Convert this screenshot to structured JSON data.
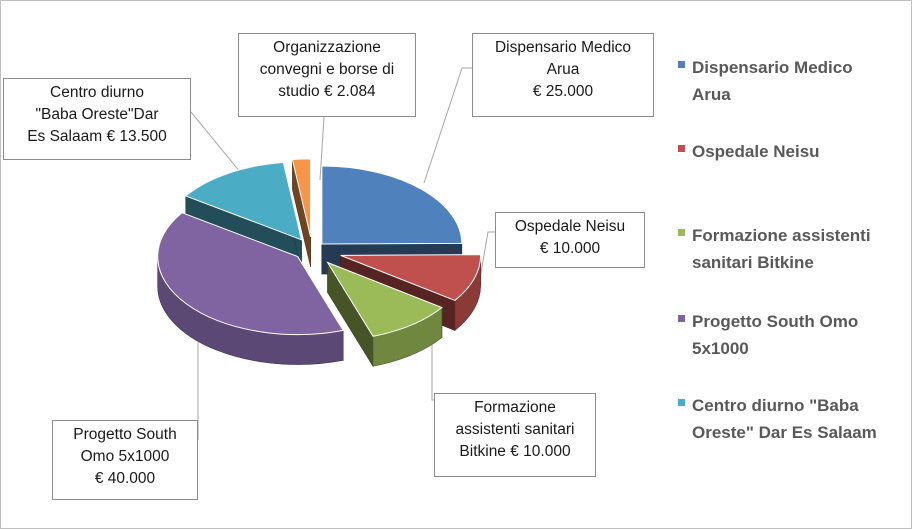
{
  "chart_data": {
    "type": "pie",
    "currency": "€",
    "slices": [
      {
        "label": "Dispensario Medico Arua",
        "value": 25000,
        "value_label": "€ 25.000",
        "color": "#4f81bd",
        "legend_label": "Dispensario Medico Arua"
      },
      {
        "label": "Ospedale Neisu",
        "value": 10000,
        "value_label": "€ 10.000",
        "color": "#c0504d",
        "legend_label": "Ospedale Neisu"
      },
      {
        "label": "Formazione assistenti sanitari Bitkine",
        "value": 10000,
        "value_label": "€ 10.000",
        "color": "#9bbb59",
        "legend_label": "Formazione assistenti sanitari Bitkine"
      },
      {
        "label": "Progetto South Omo 5x1000",
        "value": 40000,
        "value_label": "€ 40.000",
        "color": "#8064a2",
        "legend_label": "Progetto South Omo 5x1000"
      },
      {
        "label": "Centro diurno \"Baba Oreste\"Dar Es Salaam",
        "value": 13500,
        "value_label": "€ 13.500",
        "color": "#4bacc6",
        "legend_label": "Centro diurno \"Baba Oreste\" Dar Es Salaam"
      },
      {
        "label": "Organizzazione convegni e borse di studio",
        "value": 2084,
        "value_label": "€ 2.084",
        "color": "#f79646",
        "legend_label": ""
      }
    ],
    "callouts": [
      {
        "lines": [
          "Dispensario Medico",
          "Arua",
          "€ 25.000"
        ]
      },
      {
        "lines": [
          "Ospedale Neisu",
          "€ 10.000"
        ]
      },
      {
        "lines": [
          "Formazione",
          "assistenti sanitari",
          "Bitkine  € 10.000"
        ]
      },
      {
        "lines": [
          "Progetto South",
          "Omo 5x1000",
          "€ 40.000"
        ]
      },
      {
        "lines": [
          "Centro diurno",
          "\"Baba Oreste\"Dar",
          "Es Salaam  € 13.500"
        ]
      },
      {
        "lines": [
          "Organizzazione",
          "convegni e borse di",
          "studio  € 2.084"
        ]
      }
    ],
    "legend": {
      "position": "right",
      "items": [
        {
          "lines": [
            "Dispensario Medico",
            "Arua"
          ],
          "color": "#4f81bd"
        },
        {
          "lines": [
            "Ospedale Neisu"
          ],
          "color": "#c0504d"
        },
        {
          "lines": [
            "Formazione assistenti",
            "sanitari Bitkine"
          ],
          "color": "#9bbb59"
        },
        {
          "lines": [
            "Progetto South Omo",
            "5x1000"
          ],
          "color": "#8064a2"
        },
        {
          "lines": [
            "Centro diurno \"Baba",
            "Oreste\" Dar Es Salaam"
          ],
          "color": "#4bacc6"
        }
      ]
    },
    "exploded": true,
    "three_d": true
  }
}
